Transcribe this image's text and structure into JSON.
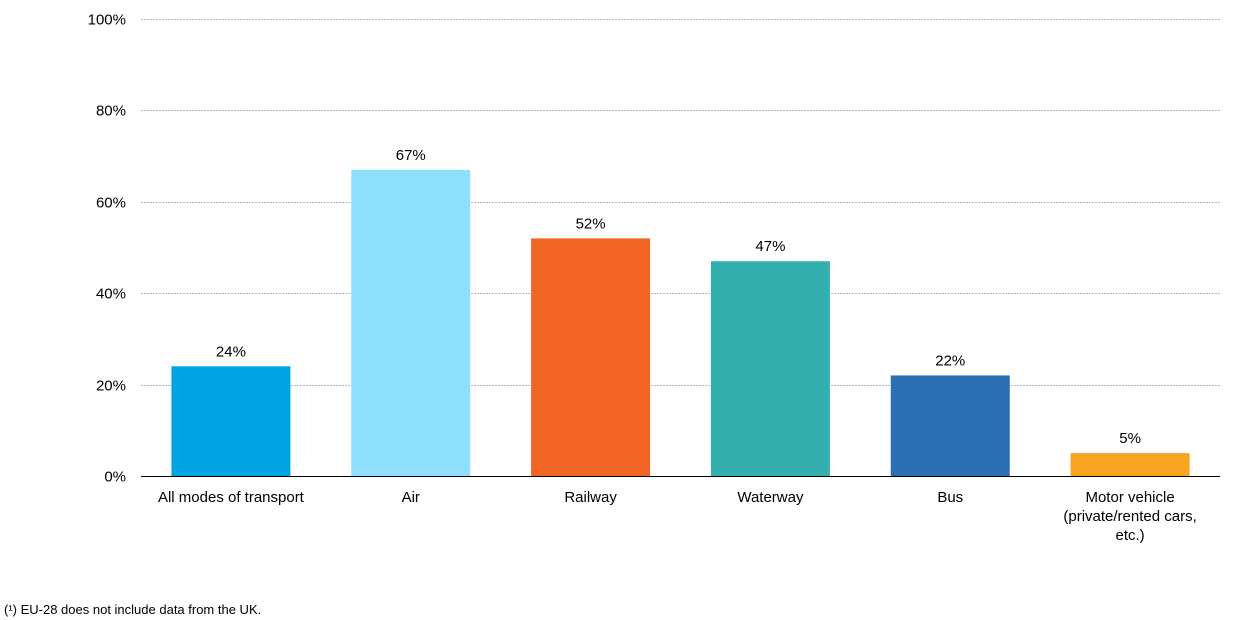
{
  "chart_data": {
    "type": "bar",
    "categories": [
      [
        "All modes of transport"
      ],
      [
        "Air"
      ],
      [
        "Railway"
      ],
      [
        "Waterway"
      ],
      [
        "Bus"
      ],
      [
        "Motor vehicle",
        "(private/rented cars,",
        "etc.)"
      ]
    ],
    "values": [
      24,
      67,
      52,
      47,
      22,
      5
    ],
    "value_labels": [
      "24%",
      "67%",
      "52%",
      "47%",
      "22%",
      "5%"
    ],
    "colors": [
      "#00A5E3",
      "#8EE0FC",
      "#F06424",
      "#33B0AE",
      "#2A6EB4",
      "#F7A51E"
    ],
    "ylim": [
      0,
      100
    ],
    "yticks": [
      0,
      20,
      40,
      60,
      80,
      100
    ],
    "ytick_labels": [
      "0%",
      "20%",
      "40%",
      "60%",
      "80%",
      "100%"
    ],
    "grid": true,
    "title": "",
    "xlabel": "",
    "ylabel": ""
  },
  "footnote": "(¹) EU-28 does not include data from the UK."
}
